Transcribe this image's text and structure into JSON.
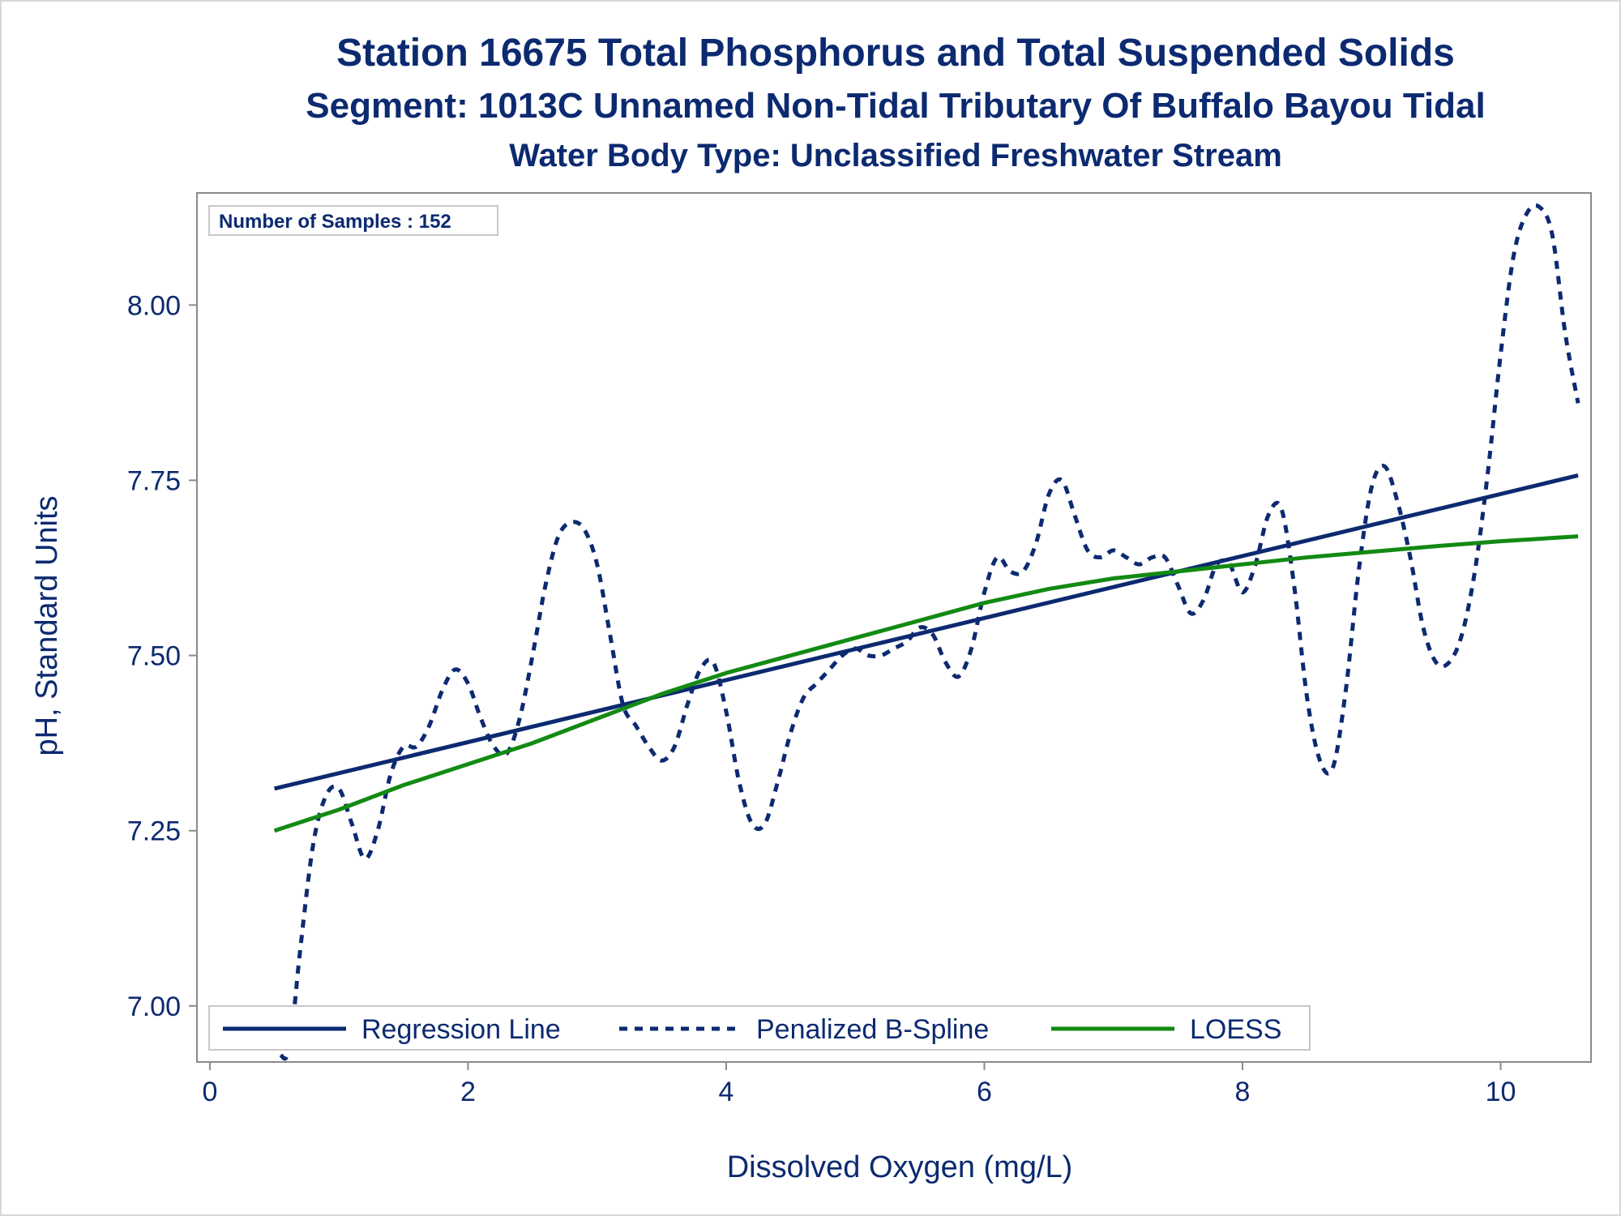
{
  "titles": {
    "line1": "Station 16675  Total Phosphorus and Total Suspended Solids",
    "line2": "Segment: 1013C  Unnamed Non-Tidal Tributary Of Buffalo Bayou Tidal",
    "line3": "Water Body Type: Unclassified Freshwater Stream"
  },
  "inset": "Number of Samples : 152",
  "colors": {
    "text": "#0c2a70",
    "regression": "#0c2a70",
    "spline": "#0c2a70",
    "loess": "#138a13",
    "axis": "#8a8a8a"
  },
  "chart_data": {
    "type": "line",
    "xlabel": "Dissolved Oxygen (mg/L)",
    "ylabel": "pH, Standard Units",
    "xlim": [
      -0.1,
      10.7
    ],
    "ylim": [
      6.92,
      8.16
    ],
    "xticks": [
      0,
      2,
      4,
      6,
      8,
      10
    ],
    "yticks": [
      7.0,
      7.25,
      7.5,
      7.75,
      8.0
    ],
    "xtick_labels": [
      "0",
      "2",
      "4",
      "6",
      "8",
      "10"
    ],
    "ytick_labels": [
      "7.00",
      "7.25",
      "7.50",
      "7.75",
      "8.00"
    ],
    "grid": false,
    "legend_position": "bottom-inside",
    "series": [
      {
        "name": "Regression Line",
        "style": "solid",
        "x": [
          0.5,
          10.6
        ],
        "y": [
          7.31,
          7.757
        ]
      },
      {
        "name": "Penalized B-Spline",
        "style": "dashed",
        "x": [
          0.5,
          0.55,
          0.6,
          0.65,
          0.7,
          0.8,
          0.9,
          1.0,
          1.1,
          1.2,
          1.3,
          1.4,
          1.5,
          1.6,
          1.7,
          1.8,
          1.9,
          2.0,
          2.1,
          2.2,
          2.3,
          2.4,
          2.5,
          2.6,
          2.7,
          2.8,
          2.9,
          3.0,
          3.1,
          3.2,
          3.3,
          3.4,
          3.5,
          3.6,
          3.7,
          3.8,
          3.9,
          4.0,
          4.1,
          4.2,
          4.3,
          4.4,
          4.5,
          4.6,
          4.7,
          4.8,
          4.9,
          5.0,
          5.1,
          5.2,
          5.3,
          5.4,
          5.5,
          5.6,
          5.7,
          5.8,
          5.9,
          6.0,
          6.1,
          6.2,
          6.3,
          6.4,
          6.5,
          6.6,
          6.7,
          6.8,
          6.9,
          7.0,
          7.1,
          7.2,
          7.3,
          7.4,
          7.5,
          7.6,
          7.7,
          7.8,
          7.9,
          8.0,
          8.1,
          8.2,
          8.3,
          8.4,
          8.5,
          8.6,
          8.7,
          8.8,
          8.9,
          9.0,
          9.1,
          9.2,
          9.3,
          9.4,
          9.5,
          9.6,
          9.7,
          9.8,
          9.9,
          10.0,
          10.1,
          10.2,
          10.3,
          10.4,
          10.5,
          10.6
        ],
        "y": [
          6.95,
          6.93,
          6.93,
          6.99,
          7.08,
          7.23,
          7.3,
          7.31,
          7.26,
          7.21,
          7.25,
          7.33,
          7.37,
          7.37,
          7.4,
          7.45,
          7.48,
          7.46,
          7.41,
          7.37,
          7.36,
          7.41,
          7.5,
          7.6,
          7.67,
          7.69,
          7.68,
          7.63,
          7.53,
          7.43,
          7.4,
          7.37,
          7.35,
          7.37,
          7.43,
          7.48,
          7.49,
          7.42,
          7.32,
          7.26,
          7.26,
          7.32,
          7.39,
          7.44,
          7.46,
          7.48,
          7.5,
          7.51,
          7.5,
          7.5,
          7.51,
          7.52,
          7.54,
          7.53,
          7.49,
          7.47,
          7.51,
          7.59,
          7.64,
          7.62,
          7.62,
          7.66,
          7.73,
          7.75,
          7.7,
          7.65,
          7.64,
          7.65,
          7.64,
          7.63,
          7.64,
          7.64,
          7.6,
          7.56,
          7.58,
          7.63,
          7.63,
          7.59,
          7.63,
          7.7,
          7.71,
          7.6,
          7.44,
          7.35,
          7.34,
          7.45,
          7.62,
          7.74,
          7.77,
          7.72,
          7.64,
          7.54,
          7.49,
          7.49,
          7.53,
          7.62,
          7.76,
          7.93,
          8.07,
          8.13,
          8.14,
          8.1,
          7.96,
          7.86
        ]
      },
      {
        "name": "LOESS",
        "style": "solid",
        "x": [
          0.5,
          1.0,
          1.5,
          2.0,
          2.5,
          3.0,
          3.5,
          4.0,
          4.5,
          5.0,
          5.5,
          6.0,
          6.5,
          7.0,
          7.5,
          8.0,
          8.5,
          9.0,
          9.5,
          10.0,
          10.6
        ],
        "y": [
          7.25,
          7.28,
          7.315,
          7.345,
          7.375,
          7.41,
          7.445,
          7.475,
          7.5,
          7.525,
          7.55,
          7.575,
          7.595,
          7.61,
          7.62,
          7.63,
          7.64,
          7.648,
          7.656,
          7.663,
          7.67
        ]
      }
    ]
  }
}
